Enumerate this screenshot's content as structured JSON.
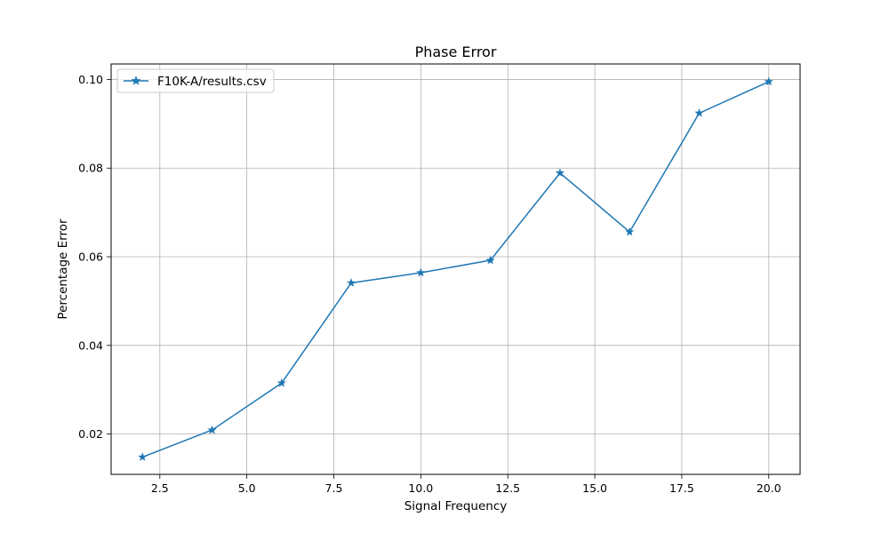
{
  "chart_data": {
    "type": "line",
    "title": "Phase Error",
    "xlabel": "Signal Frequency",
    "ylabel": "Percentage Error",
    "xlim": [
      1.1,
      20.9
    ],
    "ylim": [
      0.0109,
      0.1035
    ],
    "xticks": [
      2.5,
      5.0,
      7.5,
      10.0,
      12.5,
      15.0,
      17.5,
      20.0
    ],
    "xtick_labels": [
      "2.5",
      "5.0",
      "7.5",
      "10.0",
      "12.5",
      "15.0",
      "17.5",
      "20.0"
    ],
    "yticks": [
      0.02,
      0.04,
      0.06,
      0.08,
      0.1
    ],
    "ytick_labels": [
      "0.02",
      "0.04",
      "0.06",
      "0.08",
      "0.10"
    ],
    "grid": true,
    "legend_position": "top-left",
    "series": [
      {
        "name": "F10K-A/results.csv",
        "color": "#1f77b4",
        "marker": "star",
        "x": [
          2,
          4,
          6,
          8,
          10,
          12,
          14,
          16,
          18,
          20
        ],
        "y": [
          0.0148,
          0.0209,
          0.0315,
          0.0541,
          0.0564,
          0.0592,
          0.0789,
          0.0656,
          0.0924,
          0.0995
        ]
      }
    ]
  }
}
